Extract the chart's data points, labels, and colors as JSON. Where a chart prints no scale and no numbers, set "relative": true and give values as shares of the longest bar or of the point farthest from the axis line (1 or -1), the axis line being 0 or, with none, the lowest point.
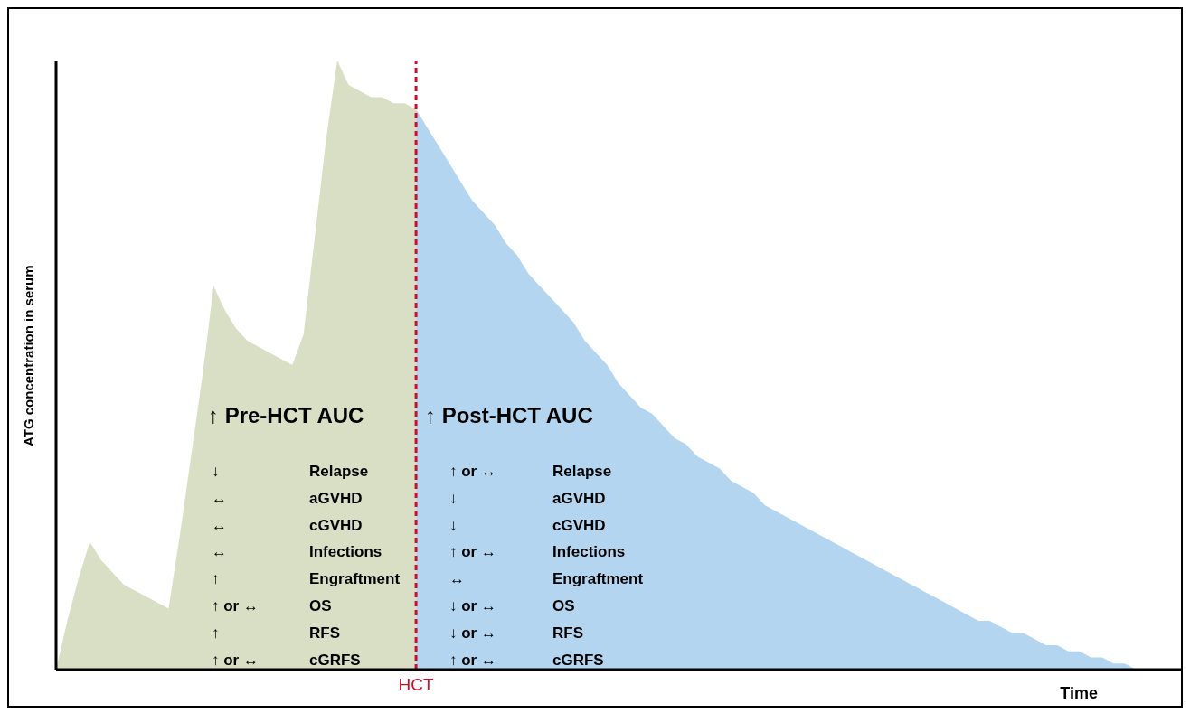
{
  "chart_data": {
    "type": "area",
    "relative": true,
    "ylabel": "ATG concentration in serum",
    "xlabel": "Time",
    "grid": false,
    "legend": false,
    "categories": [
      null,
      null,
      null,
      null,
      null,
      null,
      null,
      null,
      null,
      null,
      null,
      null,
      null,
      null,
      null,
      null,
      null,
      null,
      null,
      null,
      null,
      null,
      null,
      null,
      null,
      null,
      null,
      null,
      null,
      null,
      null,
      null,
      null,
      null,
      null,
      null,
      null,
      null,
      null,
      null,
      null,
      null,
      null,
      null,
      null,
      null,
      null,
      null,
      null,
      null,
      null,
      null,
      null,
      null,
      null,
      null,
      null,
      null,
      null,
      null,
      null,
      null,
      null,
      null,
      null,
      null,
      null,
      null,
      null,
      null,
      null,
      null,
      null,
      null,
      null,
      null,
      null,
      null,
      null,
      null,
      null,
      null,
      null,
      null,
      null,
      null,
      null,
      null,
      null,
      null,
      null,
      null,
      null,
      null,
      null,
      null,
      null,
      null,
      null,
      null,
      null
    ],
    "series": [
      {
        "color": "#d8dfc4",
        "values": [
          0,
          0.08,
          0.15,
          0.21,
          0.18,
          0.16,
          0.14,
          0.13,
          0.12,
          0.11,
          0.1,
          0.22,
          0.35,
          0.48,
          0.63,
          0.59,
          0.56,
          0.54,
          0.53,
          0.52,
          0.51,
          0.5,
          0.55,
          0.71,
          0.87,
          1,
          0.96,
          0.95,
          0.94,
          0.94,
          0.93,
          0.93,
          0.92,
          null,
          null,
          null,
          null,
          null,
          null,
          null,
          null,
          null,
          null,
          null,
          null,
          null,
          null,
          null,
          null,
          null,
          null,
          null,
          null,
          null,
          null,
          null,
          null,
          null,
          null,
          null,
          null,
          null,
          null,
          null,
          null,
          null,
          null,
          null,
          null,
          null,
          null,
          null,
          null,
          null,
          null,
          null,
          null,
          null,
          null,
          null,
          null,
          null,
          null,
          null,
          null,
          null,
          null,
          null,
          null,
          null,
          null,
          null,
          null,
          null,
          null,
          null,
          null,
          null,
          null,
          null,
          null
        ]
      },
      {
        "color": "#b3d5f0",
        "values": [
          null,
          null,
          null,
          null,
          null,
          null,
          null,
          null,
          null,
          null,
          null,
          null,
          null,
          null,
          null,
          null,
          null,
          null,
          null,
          null,
          null,
          null,
          null,
          null,
          null,
          null,
          null,
          null,
          null,
          null,
          null,
          null,
          0.92,
          0.89,
          0.86,
          0.83,
          0.8,
          0.77,
          0.75,
          0.73,
          0.7,
          0.68,
          0.65,
          0.63,
          0.61,
          0.59,
          0.57,
          0.54,
          0.52,
          0.5,
          0.47,
          0.45,
          0.43,
          0.42,
          0.4,
          0.38,
          0.37,
          0.35,
          0.34,
          0.33,
          0.31,
          0.3,
          0.29,
          0.27,
          0.26,
          0.25,
          0.24,
          0.23,
          0.22,
          0.21,
          0.2,
          0.19,
          0.18,
          0.17,
          0.16,
          0.15,
          0.14,
          0.13,
          0.12,
          0.11,
          0.1,
          0.09,
          0.08,
          0.08,
          0.07,
          0.06,
          0.06,
          0.05,
          0.04,
          0.04,
          0.03,
          0.03,
          0.02,
          0.02,
          0.01,
          0.01,
          0,
          null,
          null,
          null,
          null
        ]
      }
    ],
    "ref_lines": [
      {
        "axis": "x",
        "label": "HCT",
        "color": "#c8102e",
        "line_style": "dashed"
      }
    ],
    "annotations": [
      "↑ Pre-HCT AUC",
      "↓",
      "Relapse",
      "↔",
      "aGVHD",
      "↔",
      "cGVHD",
      "↔",
      "Infections",
      "↑",
      "Engraftment",
      "↑ or ↔",
      "OS",
      "↑",
      "RFS",
      "↑ or ↔",
      "cGRFS",
      "↑ Post-HCT AUC",
      "↑ or ↔",
      "Relapse",
      "↓",
      "aGVHD",
      "↓",
      "cGVHD",
      "↑ or ↔",
      "Infections",
      "↔",
      "Engraftment",
      "↓ or ↔",
      "OS",
      "↓ or ↔",
      "RFS",
      "↑ or ↔",
      "cGRFS"
    ]
  }
}
